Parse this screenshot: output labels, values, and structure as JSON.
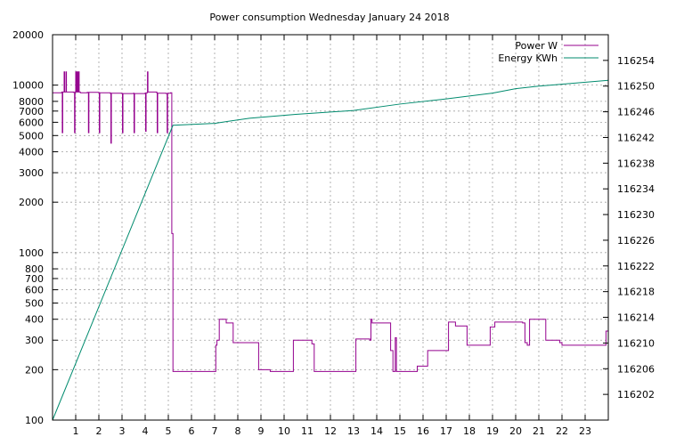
{
  "chart_data": {
    "type": "line",
    "title": "Power consumption Wednesday January 24 2018",
    "xlabel": "",
    "ylabel": "",
    "y2label": "",
    "grid": true,
    "legend_position": "top-right",
    "x_range": [
      0,
      24
    ],
    "x_ticks": [
      1,
      2,
      3,
      4,
      5,
      6,
      7,
      8,
      9,
      10,
      11,
      12,
      13,
      14,
      15,
      16,
      17,
      18,
      19,
      20,
      21,
      22,
      23
    ],
    "y_scale": "log",
    "y_range": [
      100,
      20000
    ],
    "y_ticks": [
      {
        "value": 100,
        "label": "100"
      },
      {
        "value": 200,
        "label": "200"
      },
      {
        "value": 300,
        "label": "300"
      },
      {
        "value": 400,
        "label": "400"
      },
      {
        "value": 500,
        "label": "500"
      },
      {
        "value": 600,
        "label": "600"
      },
      {
        "value": 700,
        "label": "700"
      },
      {
        "value": 800,
        "label": "800"
      },
      {
        "value": 1000,
        "label": "1000"
      },
      {
        "value": 2000,
        "label": "2000"
      },
      {
        "value": 3000,
        "label": "3000"
      },
      {
        "value": 4000,
        "label": "4000"
      },
      {
        "value": 5000,
        "label": "5000"
      },
      {
        "value": 6000,
        "label": "6000"
      },
      {
        "value": 7000,
        "label": "7000"
      },
      {
        "value": 8000,
        "label": "8000"
      },
      {
        "value": 10000,
        "label": "10000"
      },
      {
        "value": 20000,
        "label": "20000"
      }
    ],
    "y2_range": [
      116198,
      116258
    ],
    "y2_ticks": [
      116202,
      116206,
      116210,
      116214,
      116218,
      116222,
      116226,
      116230,
      116234,
      116238,
      116242,
      116246,
      116250,
      116254
    ],
    "series": [
      {
        "name": "Power W",
        "color": "#94008e",
        "axis": "y",
        "step": true,
        "points": [
          [
            0,
            9000
          ],
          [
            0.4,
            9100
          ],
          [
            0.42,
            5200
          ],
          [
            0.44,
            9100
          ],
          [
            0.5,
            12000
          ],
          [
            0.52,
            9100
          ],
          [
            0.58,
            12000
          ],
          [
            0.6,
            9100
          ],
          [
            0.9,
            9050
          ],
          [
            0.95,
            5200
          ],
          [
            0.97,
            9100
          ],
          [
            1.0,
            12000
          ],
          [
            1.02,
            9100
          ],
          [
            1.05,
            12000
          ],
          [
            1.08,
            9100
          ],
          [
            1.12,
            12000
          ],
          [
            1.15,
            9100
          ],
          [
            1.2,
            9000
          ],
          [
            1.5,
            9050
          ],
          [
            1.55,
            5200
          ],
          [
            1.57,
            9050
          ],
          [
            2.0,
            9000
          ],
          [
            2.02,
            5200
          ],
          [
            2.04,
            9000
          ],
          [
            2.5,
            8900
          ],
          [
            2.52,
            4500
          ],
          [
            2.54,
            8950
          ],
          [
            3.0,
            8900
          ],
          [
            3.02,
            5200
          ],
          [
            3.04,
            8900
          ],
          [
            3.5,
            8950
          ],
          [
            3.52,
            5200
          ],
          [
            3.54,
            8900
          ],
          [
            4.0,
            8950
          ],
          [
            4.02,
            5300
          ],
          [
            4.04,
            9000
          ],
          [
            4.1,
            12000
          ],
          [
            4.12,
            9100
          ],
          [
            4.5,
            9000
          ],
          [
            4.52,
            5200
          ],
          [
            4.54,
            8950
          ],
          [
            4.9,
            8900
          ],
          [
            4.95,
            5200
          ],
          [
            4.97,
            8950
          ],
          [
            5.1,
            9000
          ],
          [
            5.15,
            1300
          ],
          [
            5.2,
            195
          ],
          [
            7.05,
            280
          ],
          [
            7.1,
            300
          ],
          [
            7.2,
            400
          ],
          [
            7.5,
            380
          ],
          [
            7.8,
            290
          ],
          [
            8.8,
            290
          ],
          [
            8.9,
            200
          ],
          [
            9.4,
            195
          ],
          [
            10.4,
            300
          ],
          [
            11.2,
            285
          ],
          [
            11.3,
            195
          ],
          [
            13.0,
            195
          ],
          [
            13.1,
            305
          ],
          [
            13.7,
            300
          ],
          [
            13.75,
            400
          ],
          [
            13.8,
            380
          ],
          [
            14.5,
            380
          ],
          [
            14.6,
            260
          ],
          [
            14.7,
            195
          ],
          [
            14.8,
            310
          ],
          [
            14.85,
            195
          ],
          [
            15.7,
            195
          ],
          [
            15.75,
            210
          ],
          [
            16.2,
            260
          ],
          [
            17.1,
            385
          ],
          [
            17.4,
            365
          ],
          [
            17.9,
            280
          ],
          [
            18.8,
            280
          ],
          [
            18.9,
            360
          ],
          [
            19.1,
            385
          ],
          [
            20.3,
            380
          ],
          [
            20.4,
            290
          ],
          [
            20.5,
            280
          ],
          [
            20.6,
            400
          ],
          [
            21.3,
            300
          ],
          [
            21.9,
            290
          ],
          [
            22.0,
            280
          ],
          [
            23.8,
            280
          ],
          [
            23.9,
            340
          ],
          [
            24.0,
            340
          ]
        ]
      },
      {
        "name": "Energy KWh",
        "color": "#008b6e",
        "axis": "y2",
        "step": false,
        "points": [
          [
            0,
            116198
          ],
          [
            5.2,
            116243.9
          ],
          [
            7.0,
            116244.2
          ],
          [
            8.5,
            116245
          ],
          [
            10.5,
            116245.6
          ],
          [
            13.0,
            116246.2
          ],
          [
            15.0,
            116247.2
          ],
          [
            17.0,
            116248
          ],
          [
            19.0,
            116248.9
          ],
          [
            20.0,
            116249.6
          ],
          [
            21.0,
            116250
          ],
          [
            22.0,
            116250.3
          ],
          [
            24.0,
            116250.9
          ]
        ]
      }
    ]
  }
}
